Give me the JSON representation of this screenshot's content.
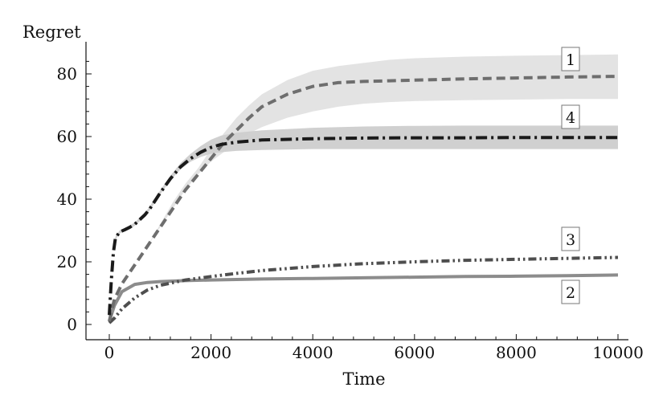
{
  "chart_data": {
    "type": "line",
    "title": "",
    "xlabel": "Time",
    "ylabel": "Regret",
    "xlim": [
      0,
      10000
    ],
    "ylim": [
      0,
      90
    ],
    "xticks": [
      0,
      2000,
      4000,
      6000,
      8000,
      10000
    ],
    "yticks": [
      0,
      20,
      40,
      60,
      80
    ],
    "grid": false,
    "legend": "none",
    "series": [
      {
        "label": "1",
        "color": "#6e6e6e",
        "style": "dashed",
        "band_color": "#e2e2e2",
        "x": [
          0,
          100,
          250,
          500,
          750,
          1000,
          1250,
          1500,
          1750,
          2000,
          2250,
          2500,
          2750,
          3000,
          3500,
          4000,
          4500,
          5000,
          5500,
          6000,
          7000,
          8000,
          9000,
          10000
        ],
        "y": [
          1,
          8,
          13,
          19,
          25,
          31,
          37,
          43,
          48,
          53,
          58,
          62,
          66,
          69.5,
          73.5,
          76,
          77.2,
          77.6,
          77.8,
          78,
          78.4,
          78.7,
          79,
          79.2
        ],
        "band_low": [
          1,
          8,
          13,
          19,
          25,
          31,
          37,
          43,
          48,
          52,
          55,
          58,
          61,
          63,
          66,
          68,
          69.5,
          70.5,
          71,
          71.3,
          71.6,
          71.8,
          72,
          72
        ],
        "band_high": [
          1,
          8,
          13,
          19,
          25,
          32,
          39,
          45,
          50,
          56,
          61,
          66,
          70,
          73.5,
          78,
          81,
          82.5,
          83.5,
          84.5,
          85,
          85.5,
          85.8,
          86,
          86.2
        ]
      },
      {
        "label": "2",
        "color": "#8c8c8c",
        "style": "solid",
        "x": [
          0,
          100,
          250,
          500,
          750,
          1000,
          1500,
          2000,
          3000,
          4000,
          5000,
          6000,
          7000,
          8000,
          9000,
          10000
        ],
        "y": [
          1,
          6,
          10.5,
          12.8,
          13.4,
          13.7,
          14,
          14.2,
          14.5,
          14.7,
          14.9,
          15.1,
          15.3,
          15.4,
          15.6,
          15.8
        ]
      },
      {
        "label": "3",
        "color": "#4e4e4e",
        "style": "dash-dot-dot",
        "x": [
          0,
          100,
          250,
          500,
          750,
          1000,
          1500,
          2000,
          2500,
          3000,
          4000,
          5000,
          6000,
          7000,
          8000,
          9000,
          10000
        ],
        "y": [
          0.5,
          2,
          5,
          8.5,
          11,
          12.5,
          14.2,
          15.3,
          16.3,
          17.2,
          18.5,
          19.4,
          20,
          20.5,
          20.8,
          21.1,
          21.4
        ]
      },
      {
        "label": "4",
        "color": "#1a1a1a",
        "style": "dash-dot",
        "band_color": "#cdcdcd",
        "x": [
          0,
          40,
          80,
          120,
          200,
          300,
          400,
          500,
          600,
          700,
          800,
          900,
          1000,
          1200,
          1400,
          1600,
          1800,
          2000,
          2200,
          2500,
          3000,
          4000,
          5000,
          6000,
          7000,
          8000,
          9000,
          10000
        ],
        "y": [
          3,
          14,
          23,
          27.5,
          29.5,
          30.2,
          31,
          32,
          33.5,
          35,
          37,
          39.5,
          42,
          46.5,
          50.3,
          53,
          55,
          56.5,
          57.5,
          58.2,
          58.9,
          59.3,
          59.5,
          59.6,
          59.6,
          59.7,
          59.7,
          59.7
        ],
        "band_low": [
          3,
          14,
          23,
          27,
          29,
          29.8,
          30.5,
          31.5,
          33,
          34.5,
          36.5,
          39,
          41.5,
          46,
          49.5,
          52,
          53.5,
          54.5,
          55,
          55.4,
          55.7,
          56,
          56,
          56,
          56,
          56,
          56,
          56
        ],
        "band_high": [
          3,
          14,
          23,
          28,
          30,
          30.8,
          31.6,
          32.6,
          34.1,
          35.6,
          37.8,
          40.3,
          42.8,
          47.5,
          51.5,
          54.5,
          57,
          59,
          60.3,
          61.2,
          62,
          62.8,
          63.2,
          63.4,
          63.5,
          63.5,
          63.5,
          63.5
        ]
      }
    ]
  }
}
